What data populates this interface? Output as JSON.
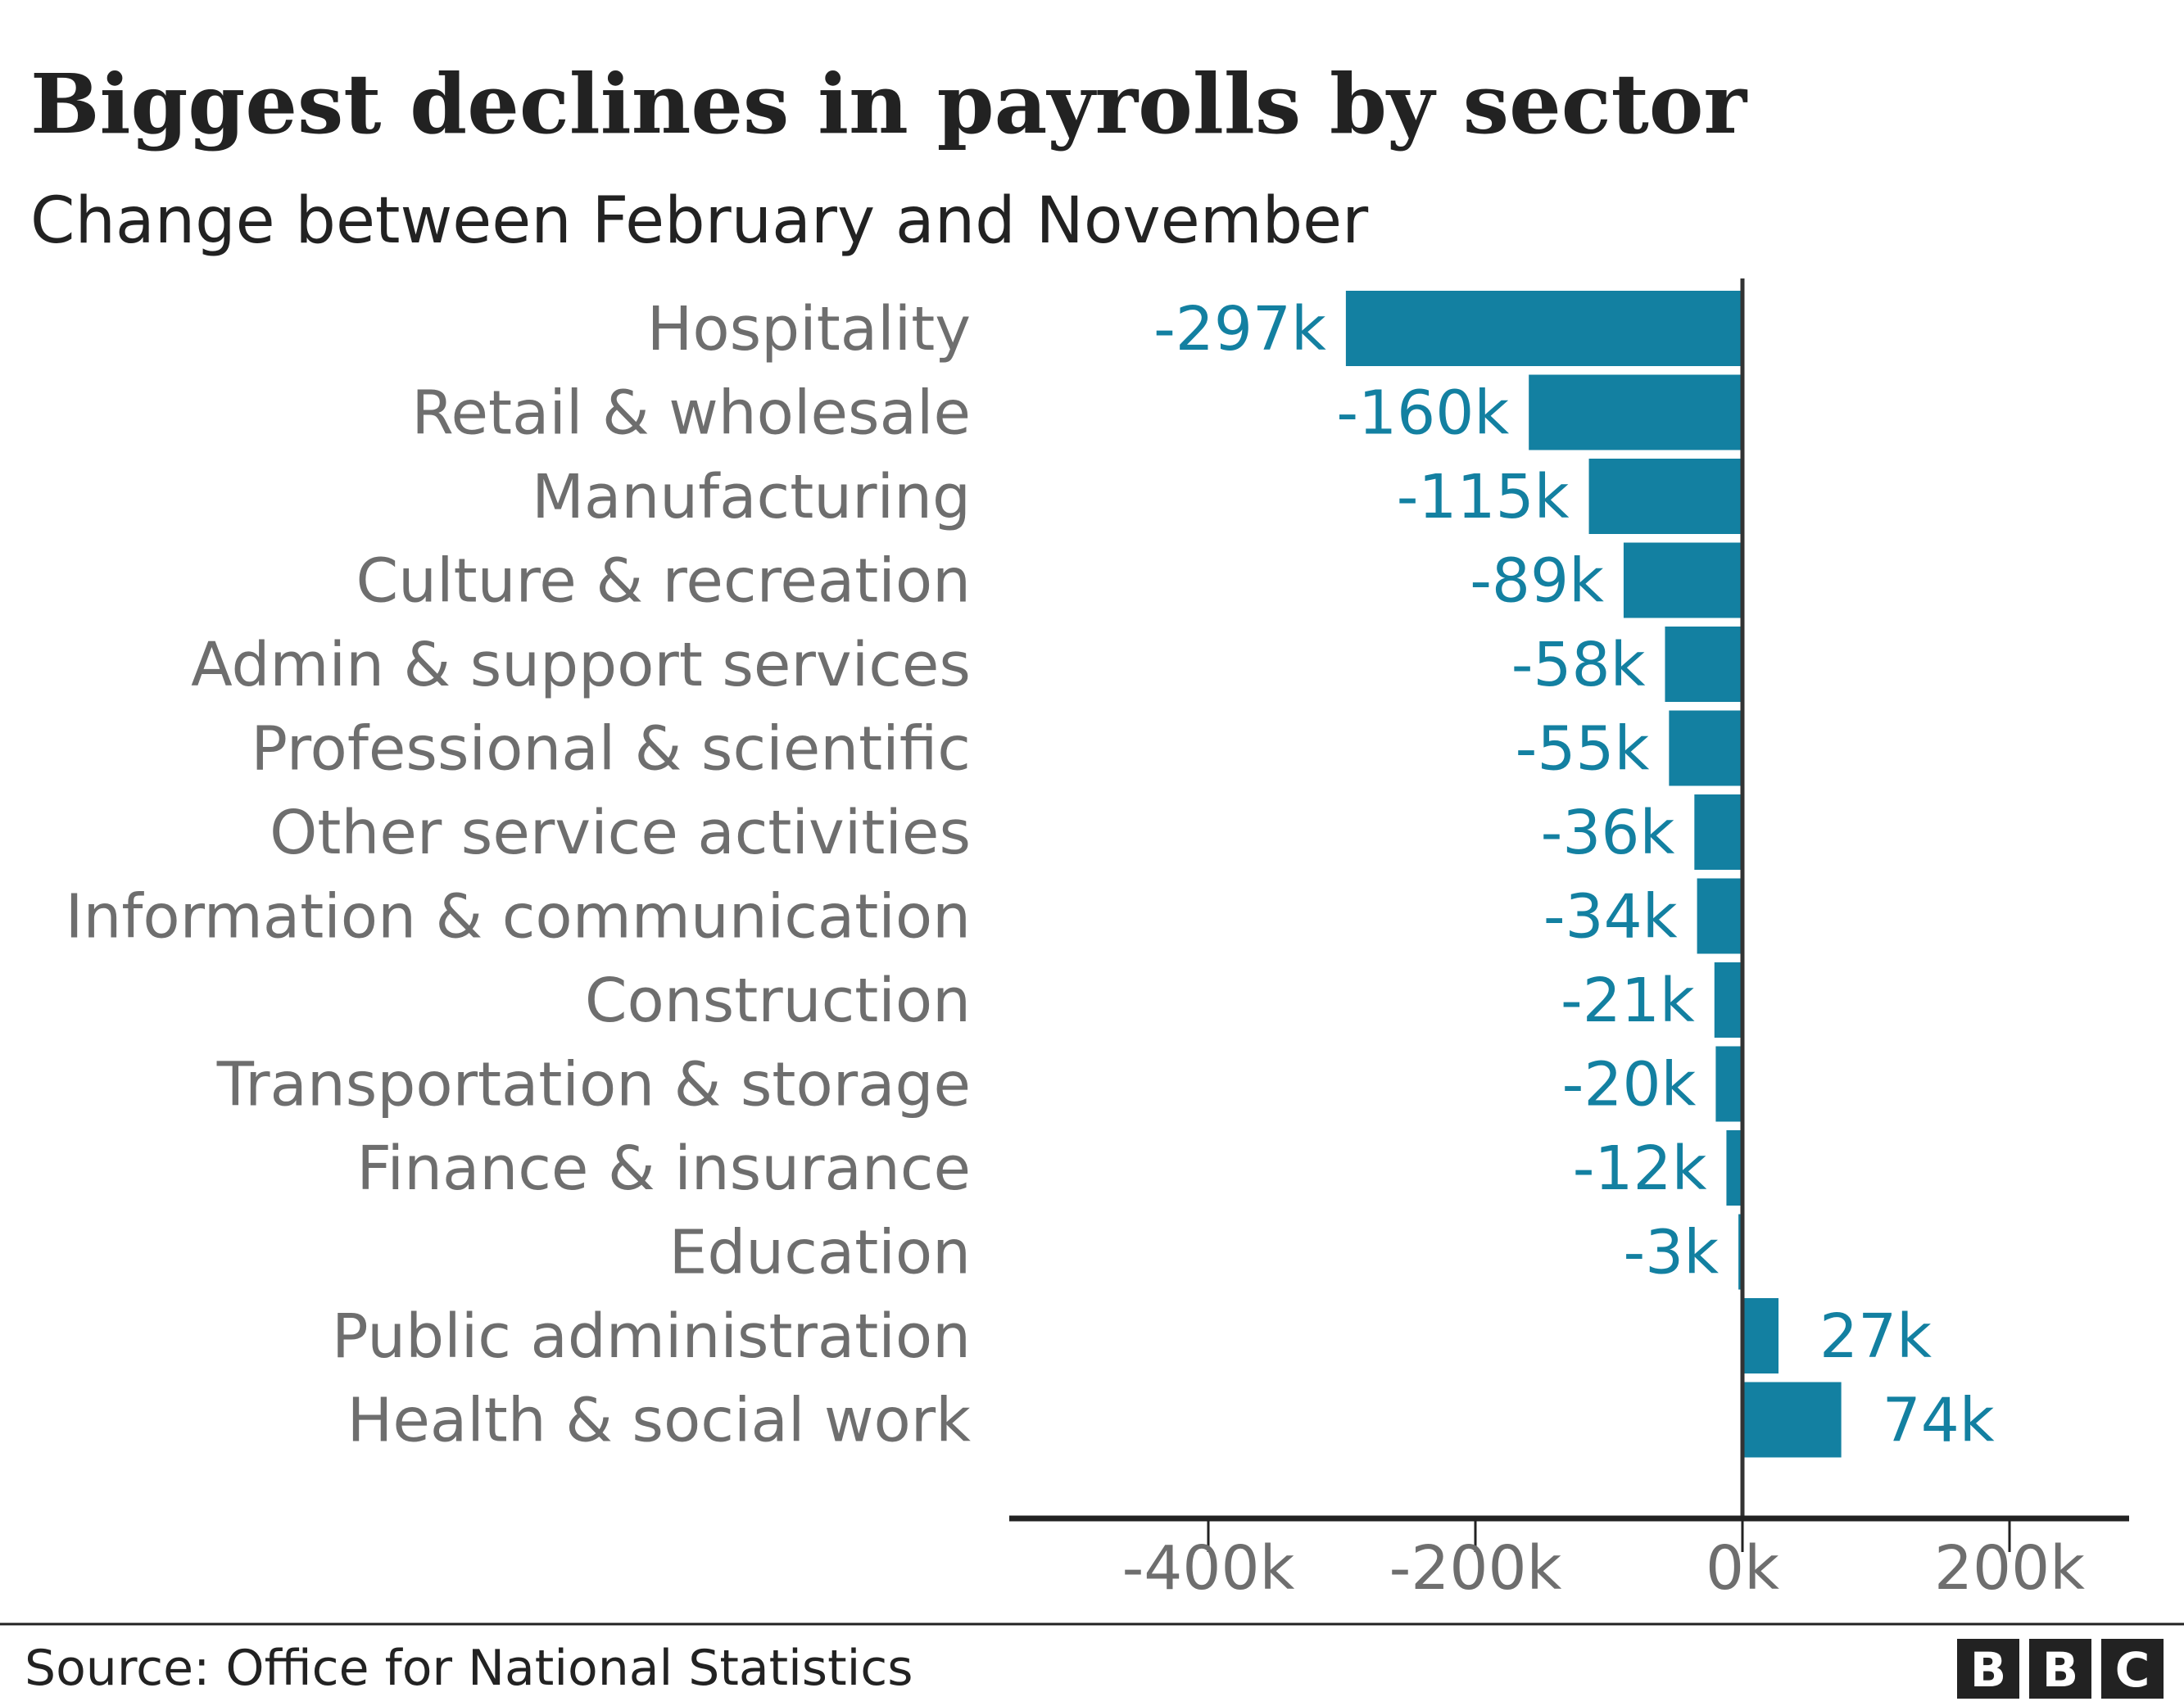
{
  "chart_data": {
    "type": "bar",
    "orientation": "horizontal",
    "title": "Biggest declines in payrolls by sector",
    "subtitle": "Change between February and November",
    "categories": [
      "Hospitality",
      "Retail & wholesale",
      "Manufacturing",
      "Culture & recreation",
      "Admin & support services",
      "Professional & scientific",
      "Other service activities",
      "Information & communication",
      "Construction",
      "Transportation & storage",
      "Finance & insurance",
      "Education",
      "Public administration",
      "Health & social work"
    ],
    "values": [
      -297,
      -160,
      -115,
      -89,
      -58,
      -55,
      -36,
      -34,
      -21,
      -20,
      -12,
      -3,
      27,
      74
    ],
    "value_labels": [
      "-297k",
      "-160k",
      "-115k",
      "-89k",
      "-58k",
      "-55k",
      "-36k",
      "-34k",
      "-21k",
      "-20k",
      "-12k",
      "-3k",
      "27k",
      "74k"
    ],
    "unit": "k",
    "xlim": [
      -550,
      290
    ],
    "ticks": [
      -400,
      -200,
      0,
      200
    ],
    "tick_labels": [
      "-400k",
      "-200k",
      "0k",
      "200k"
    ],
    "grid": false,
    "bar_color": "#1380A1"
  },
  "footer": {
    "source": "Source: Office for National Statistics",
    "logo": "BBC"
  }
}
